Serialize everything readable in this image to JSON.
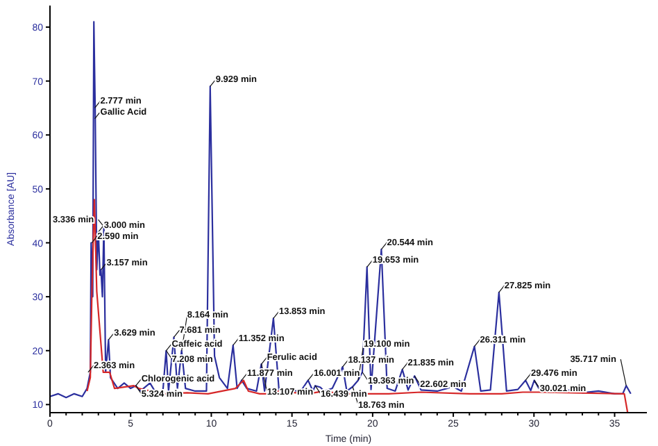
{
  "chart_data": {
    "type": "line",
    "xlabel": "Time (min)",
    "ylabel": "Absorbance [AU]",
    "xlim": [
      0,
      37
    ],
    "ylim": [
      8.5,
      84
    ],
    "xticks": [
      0,
      5,
      10,
      15,
      20,
      25,
      30,
      35
    ],
    "yticks": [
      10,
      20,
      30,
      40,
      50,
      60,
      70,
      80
    ],
    "grid": false,
    "marker": "none",
    "line_style": "solid",
    "series": [
      {
        "color": "#2b2f9e",
        "x": [
          0,
          0.5,
          1,
          1.5,
          2,
          2.3,
          2.5,
          2.55,
          2.65,
          2.72,
          2.8,
          2.9,
          3.0,
          3.1,
          3.16,
          3.25,
          3.34,
          3.45,
          3.63,
          3.75,
          4.2,
          4.6,
          5.0,
          5.32,
          5.6,
          6.2,
          6.6,
          7.0,
          7.2,
          7.35,
          7.68,
          7.9,
          8.16,
          8.4,
          9.0,
          9.7,
          9.93,
          10.2,
          10.5,
          11.0,
          11.35,
          11.6,
          11.88,
          12.2,
          12.8,
          13.1,
          13.3,
          13.85,
          14.2,
          15,
          15.5,
          16.0,
          16.3,
          16.44,
          16.76,
          17,
          17.5,
          18.14,
          18.4,
          18.76,
          19.1,
          19.36,
          19.65,
          19.9,
          20.54,
          20.9,
          21.4,
          21.84,
          22.2,
          22.6,
          23,
          24,
          25,
          25.5,
          26.31,
          26.7,
          27.3,
          27.83,
          28.3,
          29,
          29.48,
          29.8,
          30.02,
          30.4,
          31,
          32,
          33,
          34,
          35,
          35.5,
          35.72,
          36
        ],
        "values": [
          11.5,
          12,
          11.3,
          12,
          11.5,
          13,
          16,
          40,
          30,
          81,
          65,
          35,
          42,
          34,
          35,
          30,
          43,
          16,
          22,
          15,
          13,
          14,
          13,
          13.5,
          12.5,
          14,
          12,
          12.5,
          20,
          12.5,
          22.5,
          13,
          20,
          13,
          12.5,
          12.5,
          69,
          19,
          15,
          13,
          21,
          13,
          14.5,
          13,
          12.5,
          17.5,
          12.5,
          26,
          12.5,
          12.8,
          12.3,
          14.5,
          12.5,
          13.5,
          13.2,
          12.5,
          13,
          17,
          12.5,
          13.3,
          14.5,
          16,
          35.5,
          12.8,
          38.8,
          13,
          12.5,
          16.5,
          12.7,
          15.3,
          12.7,
          12.5,
          13.3,
          12.5,
          20.8,
          12.5,
          12.7,
          30.8,
          12.5,
          12.8,
          14.5,
          12.6,
          14.5,
          12.5,
          12.3,
          12.8,
          12.2,
          12.5,
          12,
          12,
          13.5,
          12
        ]
      },
      {
        "color": "#d62728",
        "x": [
          2.3,
          2.5,
          2.6,
          2.75,
          2.9,
          3.3,
          3.7,
          4,
          5.2,
          5.5,
          7.0,
          7.4,
          8.5,
          9.8,
          11.5,
          12,
          12.3,
          13,
          13.6,
          14,
          16,
          17,
          18,
          19,
          21,
          23,
          26,
          28,
          29.3,
          30.3,
          35.6,
          35.8
        ],
        "values": [
          12.5,
          15,
          31,
          48,
          31,
          16,
          16,
          13,
          13.5,
          13,
          12,
          12,
          12.2,
          12,
          13,
          14.5,
          12.5,
          12,
          12,
          12.5,
          12,
          12.5,
          12,
          12,
          12,
          12.3,
          12,
          12,
          12.3,
          12.3,
          12,
          8.6
        ]
      }
    ],
    "annotations": [
      {
        "text": "2.777 min",
        "x": 2.777,
        "y": 65
      },
      {
        "text": "Gallic Acid",
        "x": 2.777,
        "y": 63
      },
      {
        "text": "Chlorogenic acid",
        "x": 5.324,
        "y": 13.5
      },
      {
        "text": "Caffeic acid",
        "x": 7.208,
        "y": 20
      },
      {
        "text": "Ferulic acid",
        "x": 13.107,
        "y": 17.5
      },
      {
        "text": "9.929 min",
        "x": 9.929,
        "y": 69
      },
      {
        "text": "3.000 min",
        "x": 3.0,
        "y": 42
      },
      {
        "text": "3.336 min",
        "x": 3.336,
        "y": 43
      },
      {
        "text": "2.590 min",
        "x": 2.59,
        "y": 40
      },
      {
        "text": "3.157 min",
        "x": 3.157,
        "y": 35
      },
      {
        "text": "3.629 min",
        "x": 3.629,
        "y": 22
      },
      {
        "text": "2.363 min",
        "x": 2.363,
        "y": 16
      },
      {
        "text": "5.324 min",
        "x": 5.324,
        "y": 13.5
      },
      {
        "text": "7.208 min",
        "x": 7.208,
        "y": 20
      },
      {
        "text": "7.681 min",
        "x": 7.681,
        "y": 22.5
      },
      {
        "text": "8.164 min",
        "x": 8.164,
        "y": 20
      },
      {
        "text": "11.352 min",
        "x": 11.352,
        "y": 21
      },
      {
        "text": "11.877 min",
        "x": 11.877,
        "y": 14.5
      },
      {
        "text": "13.107 min",
        "x": 13.107,
        "y": 17.5
      },
      {
        "text": "13.853 min",
        "x": 13.853,
        "y": 26
      },
      {
        "text": "16.001 min",
        "x": 16.001,
        "y": 14.5
      },
      {
        "text": "16.439 min",
        "x": 16.439,
        "y": 13.5
      },
      {
        "text": "18.137 min",
        "x": 18.137,
        "y": 17
      },
      {
        "text": "18.763 min",
        "x": 18.763,
        "y": 13.3
      },
      {
        "text": "19.100 min",
        "x": 19.1,
        "y": 14.5
      },
      {
        "text": "19.363 min",
        "x": 19.363,
        "y": 16
      },
      {
        "text": "19.653 min",
        "x": 19.653,
        "y": 35.5
      },
      {
        "text": "20.544 min",
        "x": 20.544,
        "y": 38.8
      },
      {
        "text": "21.835 min",
        "x": 21.835,
        "y": 16.5
      },
      {
        "text": "22.602 min",
        "x": 22.602,
        "y": 15.3
      },
      {
        "text": "26.311 min",
        "x": 26.311,
        "y": 20.8
      },
      {
        "text": "27.825 min",
        "x": 27.825,
        "y": 30.8
      },
      {
        "text": "29.476 min",
        "x": 29.476,
        "y": 14.5
      },
      {
        "text": "30.021 min",
        "x": 30.021,
        "y": 14.5
      },
      {
        "text": "35.717 min",
        "x": 35.717,
        "y": 13.5
      }
    ]
  }
}
